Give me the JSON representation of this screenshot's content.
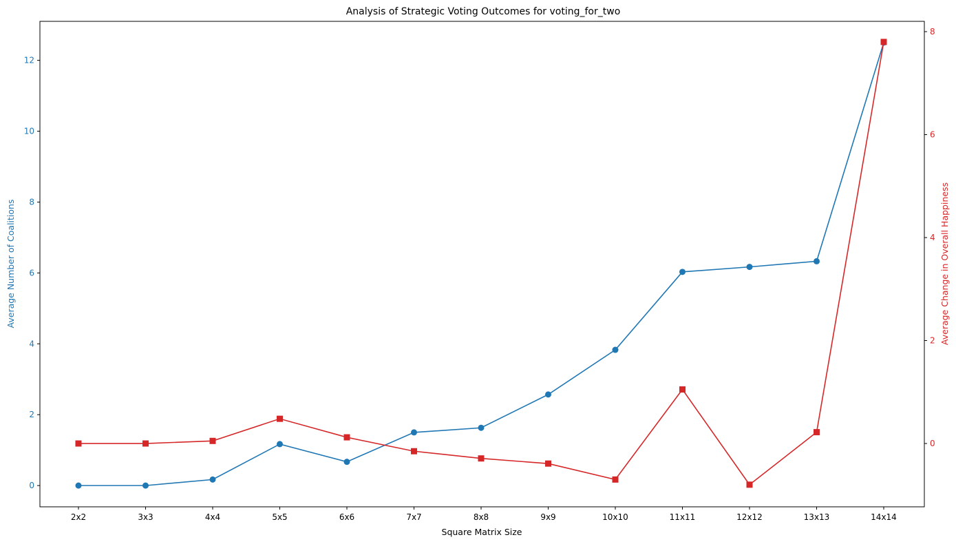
{
  "chart_data": {
    "type": "line",
    "title": "Analysis of Strategic Voting Outcomes for voting_for_two",
    "xlabel": "Square Matrix Size",
    "ylabel_left": "Average Number of Coalitions",
    "ylabel_right": "Average Change in Overall Happiness",
    "categories": [
      "2x2",
      "3x3",
      "4x4",
      "5x5",
      "6x6",
      "7x7",
      "8x8",
      "9x9",
      "10x10",
      "11x11",
      "12x12",
      "13x13",
      "14x14"
    ],
    "series": [
      {
        "axis": "left",
        "color": "#1f77b4",
        "marker": "circle",
        "values": [
          0.0,
          0.0,
          0.17,
          1.17,
          0.67,
          1.5,
          1.63,
          2.57,
          3.83,
          6.03,
          6.17,
          6.33,
          12.5
        ]
      },
      {
        "axis": "right",
        "color": "#d62728",
        "marker": "square",
        "values": [
          0.0,
          0.0,
          0.05,
          0.48,
          0.12,
          -0.15,
          -0.29,
          -0.39,
          -0.7,
          1.05,
          -0.8,
          0.22,
          7.8
        ]
      }
    ],
    "ylim_left": [
      -0.6,
      13.1
    ],
    "ylim_right": [
      -1.23,
      8.2
    ],
    "yticks_left": [
      "0",
      "2",
      "4",
      "6",
      "8",
      "10",
      "12"
    ],
    "yticks_right": [
      "0",
      "2",
      "4",
      "6",
      "8"
    ],
    "grid": false,
    "legend": "none"
  }
}
